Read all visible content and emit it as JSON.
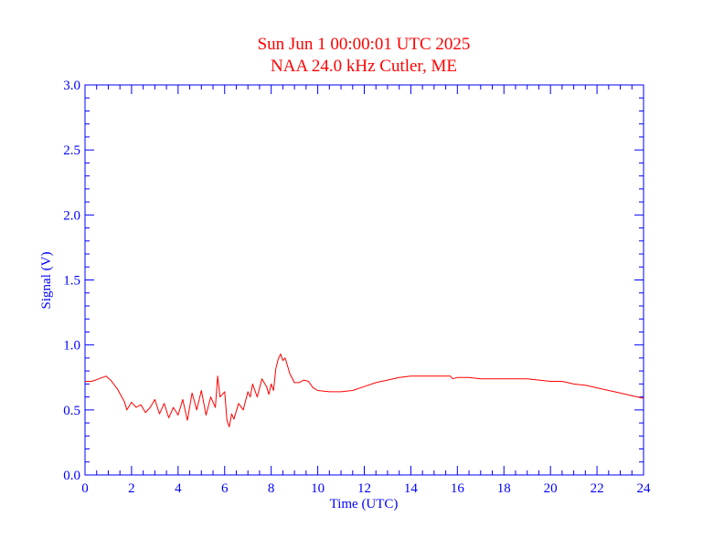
{
  "chart_data": {
    "type": "line",
    "title": "Sun Jun 1 00:00:01 UTC 2025",
    "subtitle": "NAA 24.0 kHz Cutler, ME",
    "xlabel": "Time (UTC)",
    "ylabel": "Signal (V)",
    "xlim": [
      0,
      24
    ],
    "ylim": [
      0,
      3
    ],
    "xticks": [
      "0",
      "2",
      "4",
      "6",
      "8",
      "10",
      "12",
      "14",
      "16",
      "18",
      "20",
      "22",
      "24"
    ],
    "yticks": [
      "0.0",
      "0.5",
      "1.0",
      "1.5",
      "2.0",
      "2.5",
      "3.0"
    ],
    "grid": false,
    "colors": {
      "axis": "#0000ff",
      "title": "#ff0000",
      "series": "#ff0000"
    },
    "series": [
      {
        "x": [
          0,
          0.3,
          0.6,
          0.9,
          1.1,
          1.4,
          1.7,
          1.8,
          2.0,
          2.2,
          2.4,
          2.6,
          2.8,
          3.0,
          3.2,
          3.4,
          3.6,
          3.8,
          4.0,
          4.2,
          4.4,
          4.6,
          4.8,
          5.0,
          5.2,
          5.4,
          5.6,
          5.7,
          5.8,
          6.0,
          6.1,
          6.2,
          6.3,
          6.4,
          6.6,
          6.8,
          7.0,
          7.1,
          7.2,
          7.4,
          7.6,
          7.8,
          7.9,
          8.0,
          8.1,
          8.2,
          8.3,
          8.4,
          8.5,
          8.6,
          8.7,
          8.8,
          9.0,
          9.2,
          9.4,
          9.6,
          9.8,
          10.0,
          10.5,
          11.0,
          11.5,
          12.0,
          12.5,
          13.0,
          13.5,
          14.0,
          14.5,
          15.0,
          15.5,
          15.7,
          15.8,
          16.0,
          16.5,
          17.0,
          17.5,
          18.0,
          18.5,
          19.0,
          19.5,
          20.0,
          20.5,
          21.0,
          21.5,
          22.0,
          22.5,
          23.0,
          23.5,
          24.0
        ],
        "y": [
          0.72,
          0.72,
          0.74,
          0.76,
          0.73,
          0.66,
          0.56,
          0.5,
          0.56,
          0.52,
          0.54,
          0.48,
          0.52,
          0.58,
          0.47,
          0.55,
          0.44,
          0.52,
          0.46,
          0.58,
          0.42,
          0.63,
          0.5,
          0.65,
          0.46,
          0.6,
          0.52,
          0.76,
          0.6,
          0.64,
          0.42,
          0.37,
          0.47,
          0.43,
          0.55,
          0.5,
          0.64,
          0.6,
          0.7,
          0.6,
          0.74,
          0.68,
          0.62,
          0.7,
          0.65,
          0.82,
          0.89,
          0.93,
          0.88,
          0.9,
          0.84,
          0.78,
          0.71,
          0.71,
          0.73,
          0.72,
          0.67,
          0.65,
          0.64,
          0.64,
          0.65,
          0.68,
          0.71,
          0.73,
          0.75,
          0.76,
          0.76,
          0.76,
          0.76,
          0.76,
          0.74,
          0.75,
          0.75,
          0.74,
          0.74,
          0.74,
          0.74,
          0.74,
          0.73,
          0.72,
          0.72,
          0.7,
          0.69,
          0.67,
          0.65,
          0.63,
          0.61,
          0.59
        ]
      }
    ]
  }
}
